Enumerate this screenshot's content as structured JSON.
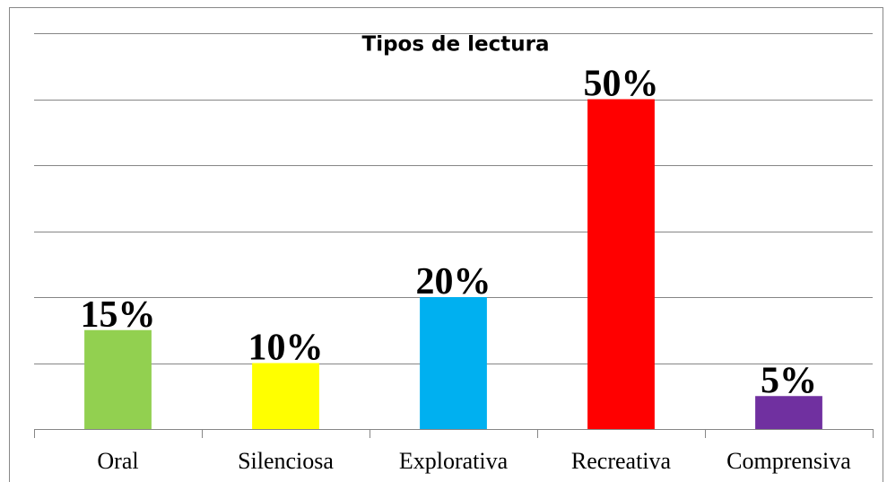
{
  "chart_data": {
    "type": "bar",
    "title": "Tipos de lectura",
    "categories": [
      "Oral",
      "Silenciosa",
      "Explorativa",
      "Recreativa",
      "Comprensiva"
    ],
    "values": [
      15,
      10,
      20,
      50,
      5
    ],
    "value_labels": [
      "15%",
      "10%",
      "20%",
      "50%",
      "5%"
    ],
    "colors": [
      "#92d050",
      "#ffff00",
      "#00b0f0",
      "#ff0000",
      "#7030a0"
    ],
    "ylim": [
      0,
      60
    ],
    "yticks": [
      0,
      10,
      20,
      30,
      40,
      50,
      60
    ],
    "grid": true
  }
}
